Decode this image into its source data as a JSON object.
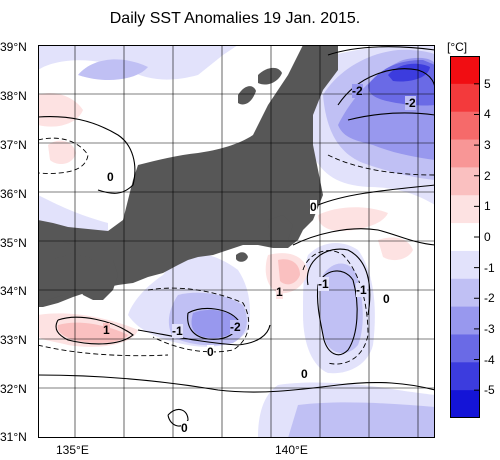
{
  "title": "Daily SST Anomalies 19 Jan. 2015.",
  "lat_labels": [
    "39°N",
    "38°N",
    "37°N",
    "36°N",
    "35°N",
    "34°N",
    "33°N",
    "32°N",
    "31°N"
  ],
  "lon_labels": [
    "135°E",
    "140°E"
  ],
  "colorbar": {
    "unit": "[°C]",
    "ticks": [
      "5",
      "4",
      "3",
      "2",
      "1",
      "0",
      "-1",
      "-2",
      "-3",
      "-4",
      "-5"
    ],
    "colors": [
      "#f10d12",
      "#f33a3c",
      "#f66a6a",
      "#f89696",
      "#fac0c0",
      "#fde2e2",
      "#ffffff",
      "#e2e2fb",
      "#c0c0f4",
      "#9898ee",
      "#6a6ae6",
      "#3c3cde",
      "#1414d7"
    ]
  },
  "contour_labels": [
    "-2",
    "-2",
    "0",
    "0",
    "1",
    "-1",
    "-1",
    "0",
    "1",
    "-1",
    "-2",
    "0",
    "0",
    "0"
  ]
}
